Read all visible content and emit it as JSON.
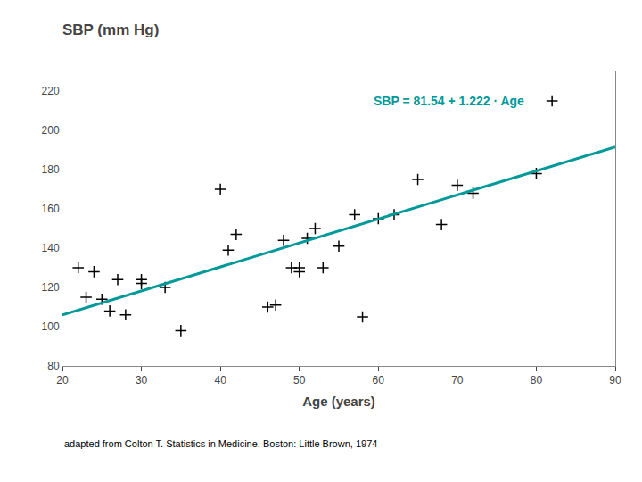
{
  "chart_data": {
    "type": "scatter",
    "title": "SBP (mm Hg)",
    "xlabel": "Age (years)",
    "annotations": [
      {
        "text": "SBP = 81.54 + 1.222 · Age",
        "color": "#009999"
      },
      {
        "text": "adapted from Colton T. Statistics in Medicine. Boston: Little Brown, 1974"
      }
    ],
    "xlim": [
      20,
      90
    ],
    "ylim": [
      80,
      230
    ],
    "xticks": [
      20,
      30,
      40,
      50,
      60,
      70,
      80,
      90
    ],
    "yticks": [
      80,
      100,
      120,
      140,
      160,
      180,
      200,
      220
    ],
    "grid": false,
    "series": [
      {
        "type": "scatter",
        "marker": "plus",
        "color": "#000000",
        "x": [
          22,
          23,
          24,
          25,
          26,
          27,
          28,
          30,
          30,
          33,
          35,
          40,
          41,
          42,
          46,
          47,
          48,
          49,
          50,
          50,
          51,
          52,
          53,
          55,
          57,
          58,
          60,
          62,
          65,
          68,
          70,
          72,
          80,
          82
        ],
        "values": [
          130,
          115,
          128,
          114,
          108,
          124,
          106,
          124,
          122,
          120,
          98,
          170,
          139,
          147,
          110,
          111,
          144,
          130,
          130,
          128,
          145,
          150,
          130,
          141,
          157,
          105,
          155,
          157,
          175,
          152,
          172,
          168,
          178,
          215
        ]
      },
      {
        "type": "line",
        "line_style": "solid",
        "color": "#009999",
        "x": [
          20,
          90
        ],
        "values": [
          105.98,
          191.52
        ]
      }
    ]
  }
}
